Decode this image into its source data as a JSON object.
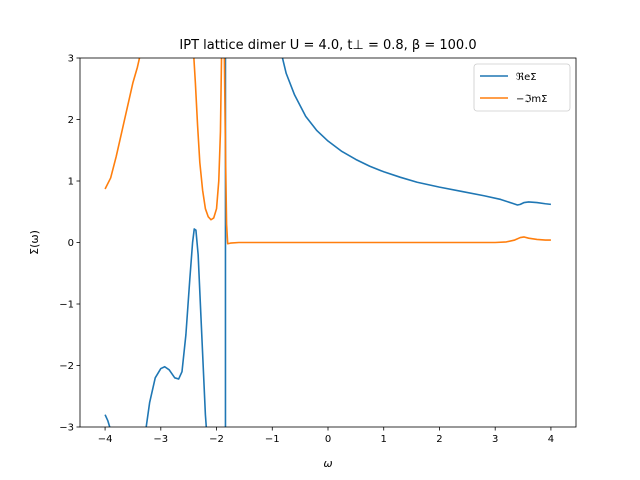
{
  "chart_data": {
    "type": "line",
    "title": "IPT lattice dimer U = 4.0, t⊥ = 0.8, β = 100.0",
    "xlabel": "ω",
    "ylabel": "Σ(ω)",
    "xlim": [
      -4.45,
      4.45
    ],
    "ylim": [
      -3,
      3
    ],
    "xticks": [
      -4,
      -3,
      -2,
      -1,
      0,
      1,
      2,
      3,
      4
    ],
    "xtick_labels": [
      "−4",
      "−3",
      "−2",
      "−1",
      "0",
      "1",
      "2",
      "3",
      "4"
    ],
    "yticks": [
      -3,
      -2,
      -1,
      0,
      1,
      2,
      3
    ],
    "ytick_labels": [
      "−3",
      "−2",
      "−1",
      "0",
      "1",
      "2",
      "3"
    ],
    "grid": false,
    "legend": "top-right",
    "series": [
      {
        "name": "ℜeΣ",
        "color": "#1f77b4",
        "segments": [
          [
            [
              -4.0,
              -2.8
            ],
            [
              -3.95,
              -2.9
            ],
            [
              -3.9,
              -3.05
            ]
          ],
          [
            [
              -3.27,
              -3.05
            ],
            [
              -3.2,
              -2.6
            ],
            [
              -3.1,
              -2.2
            ],
            [
              -3.0,
              -2.05
            ],
            [
              -2.93,
              -2.02
            ],
            [
              -2.85,
              -2.07
            ],
            [
              -2.75,
              -2.2
            ],
            [
              -2.68,
              -2.22
            ],
            [
              -2.62,
              -2.1
            ],
            [
              -2.55,
              -1.5
            ],
            [
              -2.48,
              -0.6
            ],
            [
              -2.43,
              0.0
            ],
            [
              -2.4,
              0.22
            ],
            [
              -2.37,
              0.2
            ],
            [
              -2.33,
              -0.2
            ],
            [
              -2.28,
              -1.2
            ],
            [
              -2.2,
              -2.8
            ],
            [
              -2.18,
              -3.05
            ]
          ],
          [
            [
              -1.84,
              -3.05
            ],
            [
              -1.84,
              3.05
            ]
          ],
          [
            [
              -0.83,
              3.05
            ],
            [
              -0.75,
              2.75
            ],
            [
              -0.6,
              2.4
            ],
            [
              -0.4,
              2.05
            ],
            [
              -0.2,
              1.82
            ],
            [
              0.0,
              1.65
            ],
            [
              0.25,
              1.48
            ],
            [
              0.5,
              1.35
            ],
            [
              0.75,
              1.24
            ],
            [
              1.0,
              1.15
            ],
            [
              1.3,
              1.06
            ],
            [
              1.6,
              0.98
            ],
            [
              2.0,
              0.9
            ],
            [
              2.4,
              0.83
            ],
            [
              2.8,
              0.76
            ],
            [
              3.1,
              0.7
            ],
            [
              3.3,
              0.64
            ],
            [
              3.4,
              0.61
            ],
            [
              3.45,
              0.62
            ],
            [
              3.52,
              0.65
            ],
            [
              3.6,
              0.66
            ],
            [
              3.75,
              0.65
            ],
            [
              3.9,
              0.63
            ],
            [
              4.0,
              0.62
            ]
          ]
        ]
      },
      {
        "name": "−ℑmΣ",
        "color": "#ff7f0e",
        "segments": [
          [
            [
              -4.0,
              0.87
            ],
            [
              -3.9,
              1.05
            ],
            [
              -3.8,
              1.4
            ],
            [
              -3.7,
              1.8
            ],
            [
              -3.6,
              2.2
            ],
            [
              -3.5,
              2.6
            ],
            [
              -3.42,
              2.85
            ],
            [
              -3.37,
              3.05
            ]
          ],
          [
            [
              -2.41,
              3.05
            ],
            [
              -2.38,
              2.6
            ],
            [
              -2.34,
              1.9
            ],
            [
              -2.3,
              1.3
            ],
            [
              -2.25,
              0.85
            ],
            [
              -2.2,
              0.55
            ],
            [
              -2.15,
              0.42
            ],
            [
              -2.1,
              0.37
            ],
            [
              -2.05,
              0.4
            ],
            [
              -2.0,
              0.55
            ],
            [
              -1.96,
              1.0
            ],
            [
              -1.93,
              1.8
            ],
            [
              -1.91,
              3.05
            ]
          ],
          [
            [
              -1.86,
              3.05
            ],
            [
              -1.84,
              1.5
            ],
            [
              -1.82,
              0.3
            ],
            [
              -1.8,
              -0.02
            ],
            [
              -1.75,
              -0.01
            ],
            [
              -1.6,
              0.0
            ],
            [
              -1.0,
              0.0
            ],
            [
              0.0,
              0.0
            ],
            [
              1.0,
              0.0
            ],
            [
              2.0,
              0.0
            ],
            [
              3.0,
              0.0
            ],
            [
              3.2,
              0.01
            ],
            [
              3.35,
              0.04
            ],
            [
              3.45,
              0.08
            ],
            [
              3.52,
              0.09
            ],
            [
              3.6,
              0.07
            ],
            [
              3.75,
              0.05
            ],
            [
              3.9,
              0.04
            ],
            [
              4.0,
              0.04
            ]
          ]
        ]
      }
    ]
  }
}
